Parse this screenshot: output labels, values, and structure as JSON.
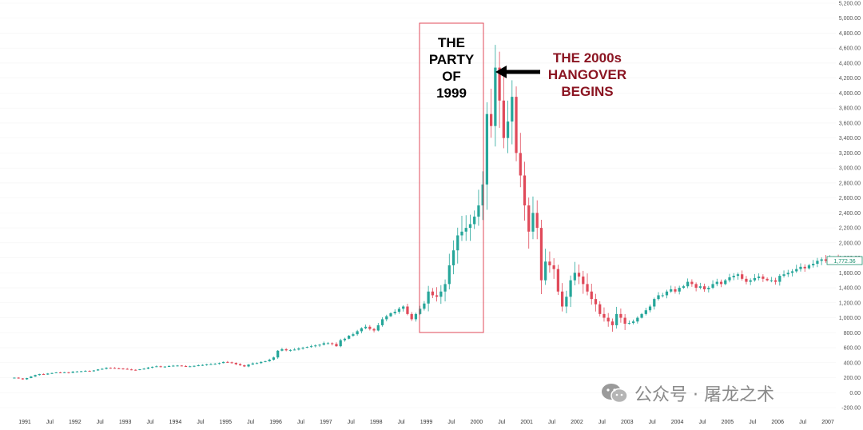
{
  "chart_data": {
    "type": "candlestick",
    "title": "",
    "ylabel": "",
    "xlabel": "",
    "ylim": [
      -200,
      5200
    ],
    "y_ticks": [
      "5,200.00",
      "5,000.00",
      "4,800.00",
      "4,600.00",
      "4,400.00",
      "4,200.00",
      "4,000.00",
      "3,800.00",
      "3,600.00",
      "3,400.00",
      "3,200.00",
      "3,000.00",
      "2,800.00",
      "2,600.00",
      "2,400.00",
      "2,200.00",
      "2,000.00",
      "1,800.00",
      "1,600.00",
      "1,400.00",
      "1,200.00",
      "1,000.00",
      "800.00",
      "600.00",
      "400.00",
      "200.00",
      "0.00",
      "-200.00"
    ],
    "x_ticks": [
      "1991",
      "Jul",
      "1992",
      "Jul",
      "1993",
      "Jul",
      "1994",
      "Jul",
      "1995",
      "Jul",
      "1996",
      "Jul",
      "1997",
      "Jul",
      "1998",
      "Jul",
      "1999",
      "Jul",
      "2000",
      "Jul",
      "2001",
      "Jul",
      "2002",
      "Jul",
      "2003",
      "Jul",
      "2004",
      "Jul",
      "2005",
      "Jul",
      "2006",
      "Jul",
      "2007"
    ],
    "last_price_label": "1,772.36",
    "up_color": "#26a69a",
    "down_color": "#e04a5a",
    "monthly_closes": [
      {
        "year": 1990,
        "closes": [
          200,
          190,
          178
        ]
      },
      {
        "year": 1991,
        "closes": [
          195,
          215,
          235,
          248,
          242,
          255,
          262,
          270,
          268,
          272,
          265,
          280
        ]
      },
      {
        "year": 1992,
        "closes": [
          282,
          286,
          290,
          288,
          296,
          310,
          318,
          332,
          330,
          325,
          322,
          318
        ]
      },
      {
        "year": 1993,
        "closes": [
          310,
          305,
          302,
          312,
          320,
          335,
          345,
          352,
          345,
          348,
          355,
          360
        ]
      },
      {
        "year": 1994,
        "closes": [
          362,
          355,
          350,
          352,
          358,
          365,
          370,
          378,
          380,
          385,
          395,
          410
        ]
      },
      {
        "year": 1995,
        "closes": [
          405,
          398,
          380,
          365,
          350,
          375,
          390,
          395,
          410,
          420,
          440,
          470
        ]
      },
      {
        "year": 1996,
        "closes": [
          560,
          580,
          565,
          570,
          575,
          590,
          600,
          610,
          620,
          630,
          640,
          660
        ]
      },
      {
        "year": 1997,
        "closes": [
          660,
          650,
          620,
          700,
          720,
          760,
          780,
          820,
          860,
          880,
          850,
          830
        ]
      },
      {
        "year": 1998,
        "closes": [
          900,
          980,
          1020,
          1060,
          1080,
          1120,
          1150,
          1050,
          980,
          1050,
          1120,
          1190
        ]
      },
      {
        "year": 1999,
        "closes": [
          1350,
          1300,
          1280,
          1350,
          1450,
          1700,
          1900,
          2100,
          2150,
          2200,
          2250,
          2350
        ]
      },
      {
        "year": 2000,
        "closes": [
          2500,
          2780,
          3720,
          3560,
          4340,
          3900,
          3400,
          3620,
          3950,
          3200,
          2900,
          2500
        ]
      },
      {
        "year": 2001,
        "closes": [
          2150,
          2400,
          2200,
          1500,
          1750,
          1700,
          1650,
          1350,
          1150,
          1280,
          1500,
          1600
        ]
      },
      {
        "year": 2002,
        "closes": [
          1550,
          1450,
          1350,
          1250,
          1180,
          1050,
          1000,
          950,
          900,
          1050,
          1000,
          920
        ]
      },
      {
        "year": 2003,
        "closes": [
          930,
          950,
          1000,
          1050,
          1100,
          1150,
          1250,
          1300,
          1300,
          1350,
          1380,
          1350
        ]
      },
      {
        "year": 2004,
        "closes": [
          1400,
          1420,
          1480,
          1450,
          1400,
          1420,
          1380,
          1400,
          1450,
          1480,
          1450,
          1500
        ]
      },
      {
        "year": 2005,
        "closes": [
          1540,
          1560,
          1580,
          1520,
          1480,
          1500,
          1530,
          1550,
          1520,
          1500,
          1500,
          1480
        ]
      },
      {
        "year": 2006,
        "closes": [
          1560,
          1580,
          1600,
          1620,
          1650,
          1680,
          1660,
          1700,
          1720,
          1760,
          1780,
          1760
        ]
      },
      {
        "year": 2007,
        "closes": [
          1790,
          1780,
          1772
        ]
      }
    ]
  },
  "annotations": {
    "party_lines": [
      "THE",
      "PARTY",
      "OF",
      "1999"
    ],
    "hangover_lines": [
      "THE 2000s",
      "HANGOVER",
      "BEGINS"
    ]
  },
  "watermark": {
    "text": "公众号 · 屠龙之术"
  },
  "colors": {
    "accent_red": "#8b1522",
    "box_red": "#e04a5a"
  }
}
